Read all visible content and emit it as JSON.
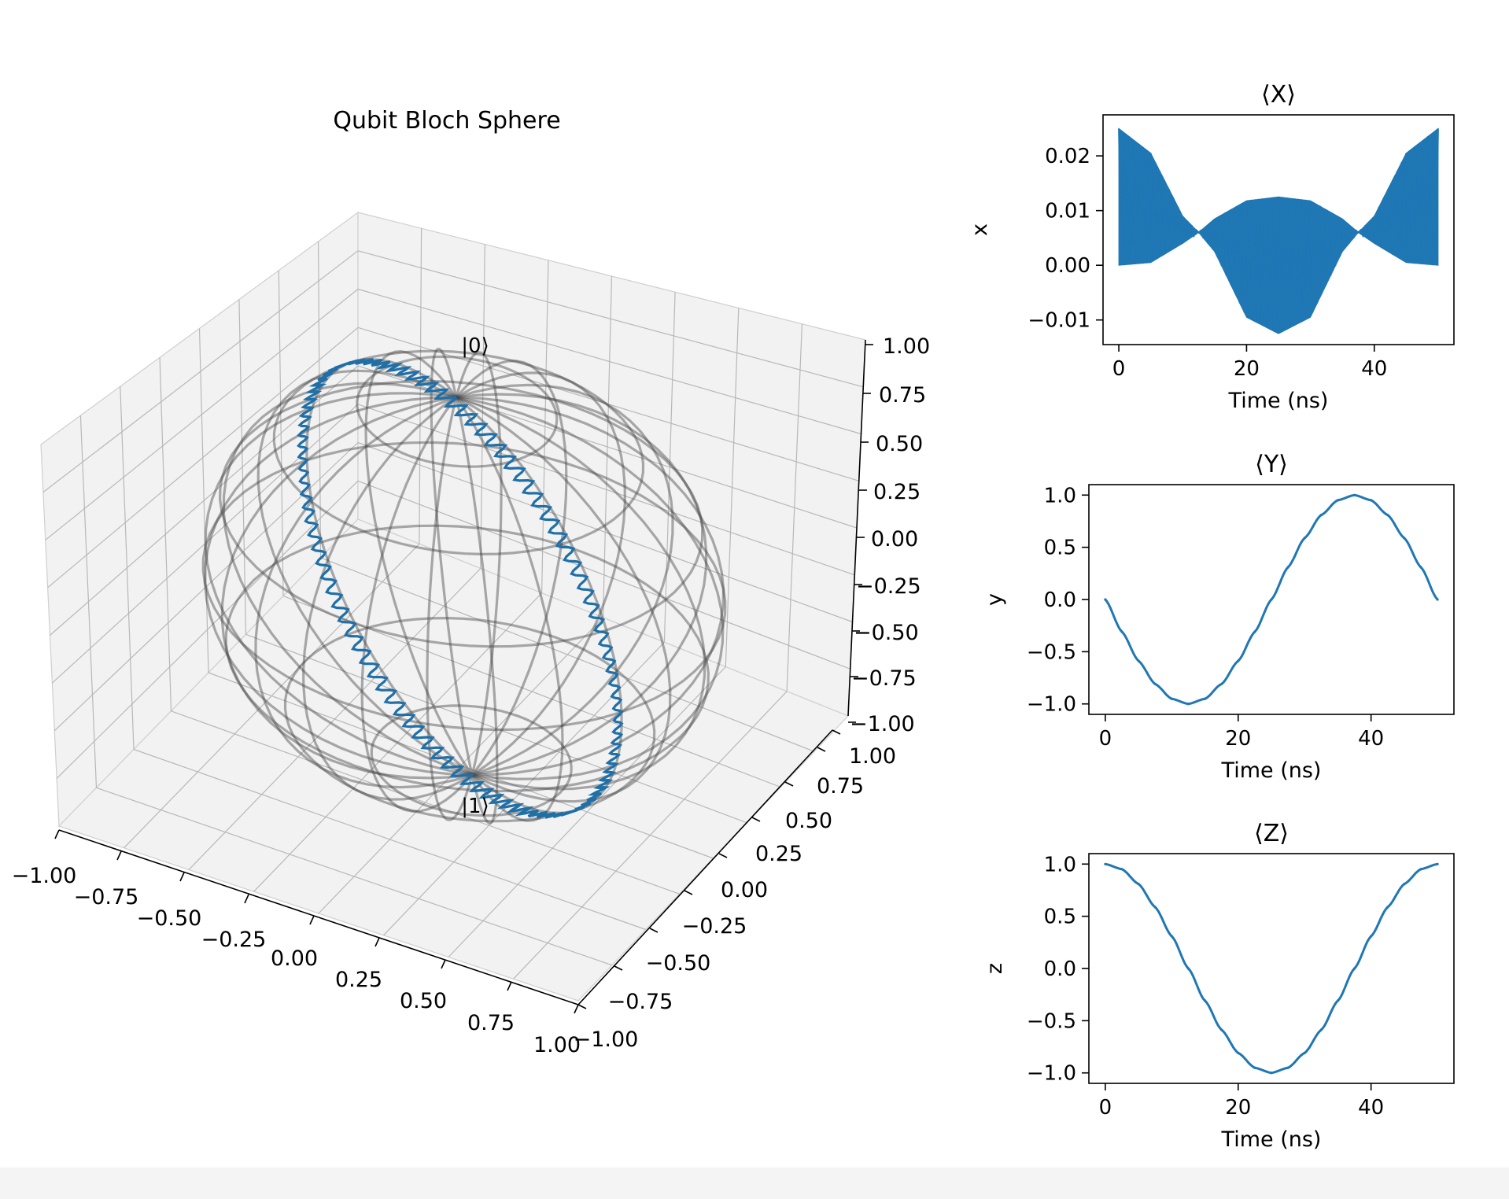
{
  "colors": {
    "series": "#1f77b4",
    "trajectory": "#1f6fa8",
    "wireframe": "#464646"
  },
  "chart_data": [
    {
      "type": "line3d",
      "title": "Qubit Bloch Sphere",
      "labels": {
        "north": "|0⟩",
        "south": "|1⟩"
      },
      "xlim": [
        -1,
        1
      ],
      "ylim": [
        -1,
        1
      ],
      "zlim": [
        -1,
        1
      ],
      "x_ticks": [
        "−1.00",
        "−0.75",
        "−0.50",
        "−0.25",
        "0.00",
        "0.25",
        "0.50",
        "0.75",
        "1.00"
      ],
      "y_ticks": [
        "−1.00",
        "−0.75",
        "−0.50",
        "−0.25",
        "0.00",
        "0.25",
        "0.50",
        "0.75",
        "1.00"
      ],
      "z_ticks": [
        "−1.00",
        "−0.75",
        "−0.50",
        "−0.25",
        "0.00",
        "0.25",
        "0.50",
        "0.75",
        "1.00"
      ],
      "grid": true,
      "series": [
        {
          "description_parametric": "x = 0.012 − 0.012·cos(ωt) small, y = −sin(2πt/50), z = cos(2πt/50)",
          "t_range": [
            0,
            50
          ]
        }
      ]
    },
    {
      "type": "line",
      "title": "⟨X⟩",
      "xlabel": "Time (ns)",
      "ylabel": "x",
      "xlim": [
        0,
        50
      ],
      "ylim": [
        -0.0145,
        0.0275
      ],
      "x_ticks": [
        "0",
        "20",
        "40"
      ],
      "x_tick_values": [
        0,
        20,
        40
      ],
      "y_ticks": [
        "−0.01",
        "0.00",
        "0.01",
        "0.02"
      ],
      "y_tick_values": [
        -0.01,
        0.0,
        0.01,
        0.02
      ],
      "envelope": {
        "t": [
          0,
          5,
          10,
          12.5,
          15,
          20,
          25,
          30,
          35,
          37.5,
          40,
          45,
          50
        ],
        "upper": [
          0.025,
          0.0205,
          0.009,
          0.006,
          0.0085,
          0.0118,
          0.0125,
          0.0118,
          0.0085,
          0.006,
          0.009,
          0.0205,
          0.025
        ],
        "lower": [
          0.0,
          0.0005,
          0.004,
          0.006,
          0.0025,
          -0.0095,
          -0.0125,
          -0.0095,
          0.0025,
          0.006,
          0.004,
          0.0005,
          0.0
        ]
      }
    },
    {
      "type": "line",
      "title": "⟨Y⟩",
      "xlabel": "Time (ns)",
      "ylabel": "y",
      "xlim": [
        0,
        50
      ],
      "ylim": [
        -1.1,
        1.1
      ],
      "x_ticks": [
        "0",
        "20",
        "40"
      ],
      "x_tick_values": [
        0,
        20,
        40
      ],
      "y_ticks": [
        "−1.0",
        "−0.5",
        "0.0",
        "0.5",
        "1.0"
      ],
      "y_tick_values": [
        -1.0,
        -0.5,
        0.0,
        0.5,
        1.0
      ],
      "x": [
        0,
        2.5,
        5,
        7.5,
        10,
        12.5,
        15,
        17.5,
        20,
        22.5,
        25,
        27.5,
        30,
        32.5,
        35,
        37.5,
        40,
        42.5,
        45,
        47.5,
        50
      ],
      "values": [
        0,
        -0.309,
        -0.588,
        -0.809,
        -0.951,
        -1.0,
        -0.951,
        -0.809,
        -0.588,
        -0.309,
        0,
        0.309,
        0.588,
        0.809,
        0.951,
        1.0,
        0.951,
        0.809,
        0.588,
        0.309,
        0
      ]
    },
    {
      "type": "line",
      "title": "⟨Z⟩",
      "xlabel": "Time (ns)",
      "ylabel": "z",
      "xlim": [
        0,
        50
      ],
      "ylim": [
        -1.1,
        1.1
      ],
      "x_ticks": [
        "0",
        "20",
        "40"
      ],
      "x_tick_values": [
        0,
        20,
        40
      ],
      "y_ticks": [
        "−1.0",
        "−0.5",
        "0.0",
        "0.5",
        "1.0"
      ],
      "y_tick_values": [
        -1.0,
        -0.5,
        0.0,
        0.5,
        1.0
      ],
      "x": [
        0,
        2.5,
        5,
        7.5,
        10,
        12.5,
        15,
        17.5,
        20,
        22.5,
        25,
        27.5,
        30,
        32.5,
        35,
        37.5,
        40,
        42.5,
        45,
        47.5,
        50
      ],
      "values": [
        1.0,
        0.951,
        0.809,
        0.588,
        0.309,
        0,
        -0.309,
        -0.588,
        -0.809,
        -0.951,
        -1.0,
        -0.951,
        -0.809,
        -0.588,
        -0.309,
        0,
        0.309,
        0.588,
        0.809,
        0.951,
        1.0
      ]
    }
  ]
}
